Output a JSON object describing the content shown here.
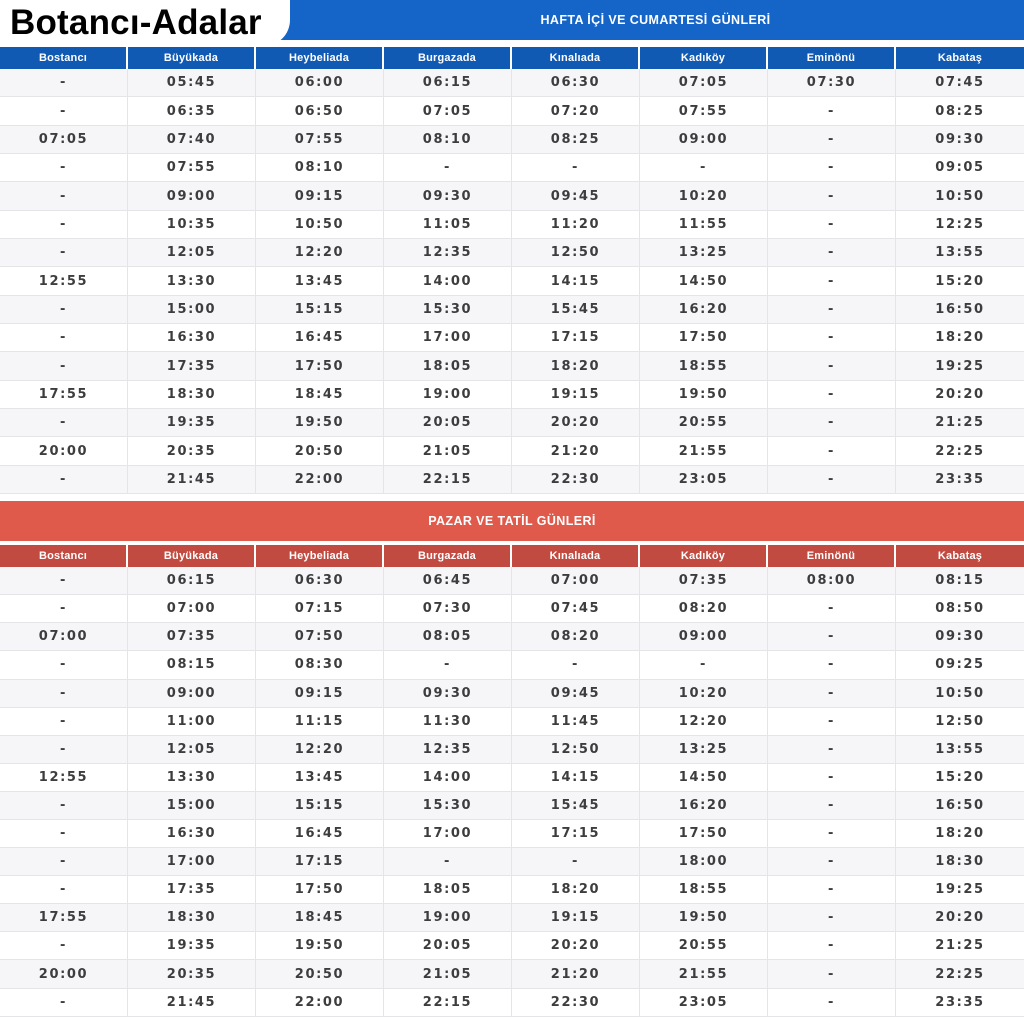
{
  "page": {
    "title": "Botancı-Adalar"
  },
  "columns": [
    "Bostancı",
    "Büyükada",
    "Heybeliada",
    "Burgazada",
    "Kınalıada",
    "Kadıköy",
    "Eminönü",
    "Kabataş"
  ],
  "tables": [
    {
      "id": "weekday-saturday",
      "title": "HAFTA İÇİ VE CUMARTESİ GÜNLERİ",
      "accent_color": "#1565c8",
      "header_color": "#115ab4",
      "rows": [
        [
          "-",
          "05:45",
          "06:00",
          "06:15",
          "06:30",
          "07:05",
          "07:30",
          "07:45"
        ],
        [
          "-",
          "06:35",
          "06:50",
          "07:05",
          "07:20",
          "07:55",
          "-",
          "08:25"
        ],
        [
          "07:05",
          "07:40",
          "07:55",
          "08:10",
          "08:25",
          "09:00",
          "-",
          "09:30"
        ],
        [
          "-",
          "07:55",
          "08:10",
          "-",
          "-",
          "-",
          "-",
          "09:05"
        ],
        [
          "-",
          "09:00",
          "09:15",
          "09:30",
          "09:45",
          "10:20",
          "-",
          "10:50"
        ],
        [
          "-",
          "10:35",
          "10:50",
          "11:05",
          "11:20",
          "11:55",
          "-",
          "12:25"
        ],
        [
          "-",
          "12:05",
          "12:20",
          "12:35",
          "12:50",
          "13:25",
          "-",
          "13:55"
        ],
        [
          "12:55",
          "13:30",
          "13:45",
          "14:00",
          "14:15",
          "14:50",
          "-",
          "15:20"
        ],
        [
          "-",
          "15:00",
          "15:15",
          "15:30",
          "15:45",
          "16:20",
          "-",
          "16:50"
        ],
        [
          "-",
          "16:30",
          "16:45",
          "17:00",
          "17:15",
          "17:50",
          "-",
          "18:20"
        ],
        [
          "-",
          "17:35",
          "17:50",
          "18:05",
          "18:20",
          "18:55",
          "-",
          "19:25"
        ],
        [
          "17:55",
          "18:30",
          "18:45",
          "19:00",
          "19:15",
          "19:50",
          "-",
          "20:20"
        ],
        [
          "-",
          "19:35",
          "19:50",
          "20:05",
          "20:20",
          "20:55",
          "-",
          "21:25"
        ],
        [
          "20:00",
          "20:35",
          "20:50",
          "21:05",
          "21:20",
          "21:55",
          "-",
          "22:25"
        ],
        [
          "-",
          "21:45",
          "22:00",
          "22:15",
          "22:30",
          "23:05",
          "-",
          "23:35"
        ]
      ]
    },
    {
      "id": "sunday-holiday",
      "title": "PAZAR VE TATİL GÜNLERİ",
      "accent_color": "#e05a4b",
      "header_color": "#c24b41",
      "rows": [
        [
          "-",
          "06:15",
          "06:30",
          "06:45",
          "07:00",
          "07:35",
          "08:00",
          "08:15"
        ],
        [
          "-",
          "07:00",
          "07:15",
          "07:30",
          "07:45",
          "08:20",
          "-",
          "08:50"
        ],
        [
          "07:00",
          "07:35",
          "07:50",
          "08:05",
          "08:20",
          "09:00",
          "-",
          "09:30"
        ],
        [
          "-",
          "08:15",
          "08:30",
          "-",
          "-",
          "-",
          "-",
          "09:25"
        ],
        [
          "-",
          "09:00",
          "09:15",
          "09:30",
          "09:45",
          "10:20",
          "-",
          "10:50"
        ],
        [
          "-",
          "11:00",
          "11:15",
          "11:30",
          "11:45",
          "12:20",
          "-",
          "12:50"
        ],
        [
          "-",
          "12:05",
          "12:20",
          "12:35",
          "12:50",
          "13:25",
          "-",
          "13:55"
        ],
        [
          "12:55",
          "13:30",
          "13:45",
          "14:00",
          "14:15",
          "14:50",
          "-",
          "15:20"
        ],
        [
          "-",
          "15:00",
          "15:15",
          "15:30",
          "15:45",
          "16:20",
          "-",
          "16:50"
        ],
        [
          "-",
          "16:30",
          "16:45",
          "17:00",
          "17:15",
          "17:50",
          "-",
          "18:20"
        ],
        [
          "-",
          "17:00",
          "17:15",
          "-",
          "-",
          "18:00",
          "-",
          "18:30"
        ],
        [
          "-",
          "17:35",
          "17:50",
          "18:05",
          "18:20",
          "18:55",
          "-",
          "19:25"
        ],
        [
          "17:55",
          "18:30",
          "18:45",
          "19:00",
          "19:15",
          "19:50",
          "-",
          "20:20"
        ],
        [
          "-",
          "19:35",
          "19:50",
          "20:05",
          "20:20",
          "20:55",
          "-",
          "21:25"
        ],
        [
          "20:00",
          "20:35",
          "20:50",
          "21:05",
          "21:20",
          "21:55",
          "-",
          "22:25"
        ],
        [
          "-",
          "21:45",
          "22:00",
          "22:15",
          "22:30",
          "23:05",
          "-",
          "23:35"
        ]
      ]
    }
  ]
}
